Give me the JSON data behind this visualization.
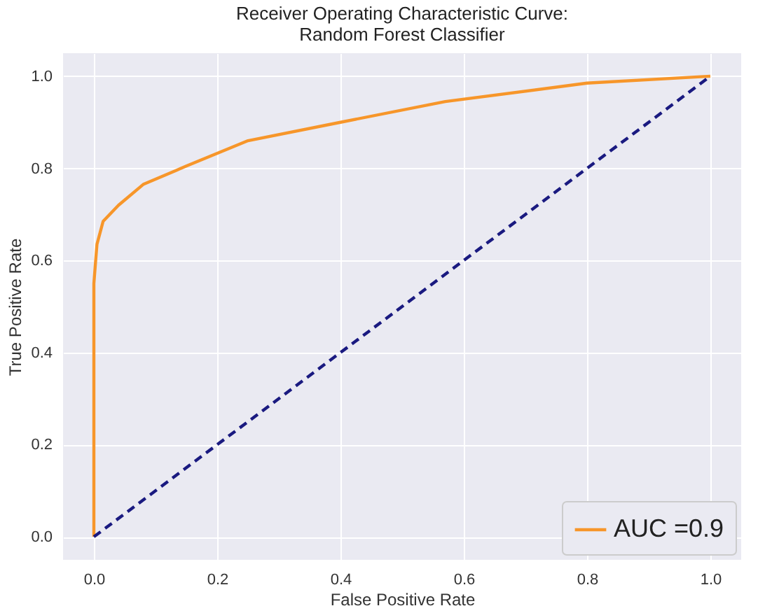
{
  "chart_data": {
    "type": "line",
    "title": "Receiver Operating Characteristic Curve:\nRandom Forest Classifier",
    "xlabel": "False Positive Rate",
    "ylabel": "True Positive Rate",
    "series": [
      {
        "name": "AUC =0.9",
        "color": "#f7962a",
        "line_style": "solid",
        "x": [
          0,
          0,
          0.005,
          0.015,
          0.04,
          0.08,
          0.15,
          0.25,
          0.4,
          0.57,
          0.8,
          1
        ],
        "values": [
          0,
          0.55,
          0.635,
          0.685,
          0.72,
          0.765,
          0.805,
          0.86,
          0.9,
          0.945,
          0.985,
          1
        ]
      },
      {
        "color": "#1a1a80",
        "line_style": "dashed",
        "x": [
          0,
          1
        ],
        "values": [
          0,
          1
        ]
      }
    ],
    "xlim": [
      -0.05,
      1.05
    ],
    "ylim": [
      -0.05,
      1.05
    ],
    "xticks": [
      {
        "value": 0,
        "label": "0.0"
      },
      {
        "value": 0.2,
        "label": "0.2"
      },
      {
        "value": 0.4,
        "label": "0.4"
      },
      {
        "value": 0.6,
        "label": "0.6"
      },
      {
        "value": 0.8,
        "label": "0.8"
      },
      {
        "value": 1,
        "label": "1.0"
      }
    ],
    "yticks": [
      {
        "value": 0,
        "label": "0.0"
      },
      {
        "value": 0.2,
        "label": "0.2"
      },
      {
        "value": 0.4,
        "label": "0.4"
      },
      {
        "value": 0.6,
        "label": "0.6"
      },
      {
        "value": 0.8,
        "label": "0.8"
      },
      {
        "value": 1,
        "label": "1.0"
      }
    ],
    "grid": true,
    "legend": "bottom right",
    "marker": "none"
  }
}
